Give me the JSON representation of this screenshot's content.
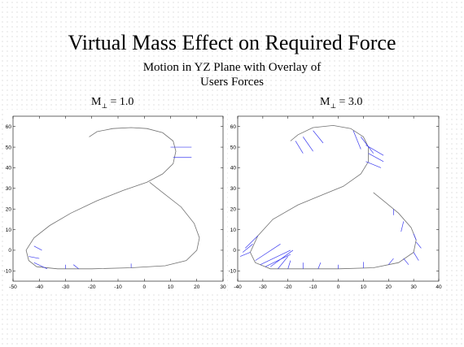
{
  "title": "Virtual Mass Effect on Required Force",
  "subtitle_line1": "Motion in YZ Plane with Overlay of",
  "subtitle_line2": "Users Forces",
  "colors": {
    "path": "#707070",
    "force": "#3b3bf0",
    "axis": "#000000"
  },
  "chart_data": [
    {
      "type": "line",
      "label_main": "M",
      "label_sub": "⊥",
      "label_rest": " = 1.0",
      "xlim": [
        -50,
        30
      ],
      "ylim": [
        -15,
        65
      ],
      "xticks": [
        -50,
        -40,
        -30,
        -20,
        -10,
        0,
        10,
        20,
        30
      ],
      "yticks": [
        -10,
        0,
        10,
        20,
        30,
        40,
        50,
        60
      ],
      "series": [
        {
          "points": [
            [
              -21,
              55
            ],
            [
              -18,
              57.5
            ],
            [
              -12,
              59
            ],
            [
              -5,
              59.5
            ],
            [
              1,
              59
            ],
            [
              7,
              57
            ],
            [
              11,
              53
            ],
            [
              12,
              48
            ],
            [
              11,
              42
            ],
            [
              7,
              37
            ],
            [
              1,
              33
            ],
            [
              -8,
              29
            ],
            [
              -18,
              24
            ],
            [
              -28,
              18
            ],
            [
              -36,
              12
            ],
            [
              -42,
              6
            ],
            [
              -45,
              0
            ],
            [
              -44,
              -5
            ],
            [
              -41,
              -8
            ],
            [
              -33,
              -9
            ],
            [
              -20,
              -9
            ],
            [
              -5,
              -8.5
            ],
            [
              8,
              -7.5
            ],
            [
              16,
              -5
            ],
            [
              20,
              0
            ],
            [
              21,
              6
            ],
            [
              19,
              13
            ],
            [
              14,
              21
            ],
            [
              7,
              28
            ],
            [
              2,
              33
            ]
          ],
          "forces": [
            [
              10,
              50,
              8,
              0
            ],
            [
              11,
              45,
              7,
              0
            ],
            [
              -42,
              2,
              3,
              -2
            ],
            [
              -44,
              -3,
              4,
              -1
            ],
            [
              -42,
              -6,
              5,
              -3
            ],
            [
              -30,
              -9,
              0,
              2
            ],
            [
              -25,
              -9,
              -2,
              2
            ],
            [
              -5,
              -8.5,
              0,
              2
            ]
          ]
        }
      ]
    },
    {
      "type": "line",
      "label_main": "M",
      "label_sub": "⊥",
      "label_rest": " = 3.0",
      "xlim": [
        -40,
        40
      ],
      "ylim": [
        -15,
        65
      ],
      "xticks": [
        -40,
        -30,
        -20,
        -10,
        0,
        10,
        20,
        30,
        40
      ],
      "yticks": [
        -10,
        0,
        10,
        20,
        30,
        40,
        50,
        60
      ],
      "series": [
        {
          "points": [
            [
              -19,
              53
            ],
            [
              -16,
              56
            ],
            [
              -10,
              59.5
            ],
            [
              -2,
              60.5
            ],
            [
              5,
              59
            ],
            [
              10,
              55
            ],
            [
              12,
              50
            ],
            [
              12,
              43
            ],
            [
              9,
              37
            ],
            [
              2,
              31
            ],
            [
              -6,
              27
            ],
            [
              -16,
              22
            ],
            [
              -26,
              15
            ],
            [
              -32,
              7
            ],
            [
              -35,
              -1
            ],
            [
              -33,
              -6
            ],
            [
              -27,
              -9
            ],
            [
              -15,
              -9
            ],
            [
              0,
              -9
            ],
            [
              14,
              -8.5
            ],
            [
              24,
              -6
            ],
            [
              30,
              -1
            ],
            [
              31,
              5
            ],
            [
              29,
              11
            ],
            [
              24,
              18
            ],
            [
              19,
              23
            ],
            [
              14,
              28
            ]
          ],
          "forces": [
            [
              -17,
              53,
              3,
              -6
            ],
            [
              -14,
              55,
              4,
              -7
            ],
            [
              -10,
              58,
              4,
              -6
            ],
            [
              6,
              58,
              3,
              -9
            ],
            [
              9,
              55,
              5,
              -8
            ],
            [
              11,
              51,
              7,
              -5
            ],
            [
              12,
              47,
              6,
              -4
            ],
            [
              11,
              43,
              6,
              -3
            ],
            [
              -32,
              7,
              -5,
              -6
            ],
            [
              -34,
              3,
              -4,
              -4
            ],
            [
              -35,
              -1,
              -4,
              -2
            ],
            [
              -33,
              -5,
              10,
              8
            ],
            [
              -31,
              -7,
              12,
              7
            ],
            [
              -29,
              -8,
              10,
              6
            ],
            [
              -27,
              -8,
              9,
              8
            ],
            [
              -24,
              -9,
              4,
              6
            ],
            [
              -20,
              -9,
              1,
              4
            ],
            [
              -14,
              -9,
              0,
              3
            ],
            [
              -8,
              -9,
              1,
              3
            ],
            [
              0,
              -9,
              0,
              2
            ],
            [
              10,
              -8.7,
              0,
              3
            ],
            [
              20,
              -7,
              2,
              3
            ],
            [
              26,
              -4,
              2,
              -3
            ],
            [
              30,
              -1,
              2,
              -4
            ],
            [
              31,
              4,
              2,
              -3
            ],
            [
              30,
              8,
              1,
              -3
            ],
            [
              26,
              14,
              -1,
              -5
            ],
            [
              22,
              20,
              0,
              -3
            ]
          ]
        }
      ]
    }
  ]
}
